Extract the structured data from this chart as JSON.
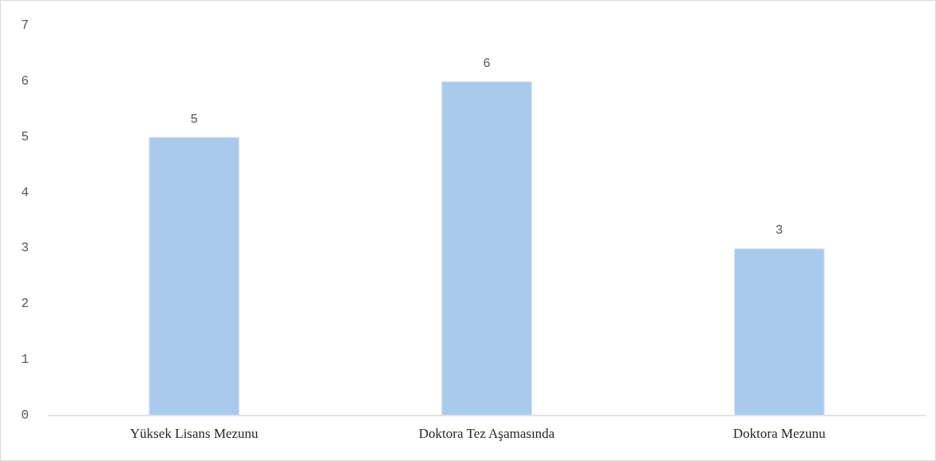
{
  "chart_data": {
    "type": "bar",
    "categories": [
      "Yüksek Lisans Mezunu",
      "Doktora Tez Aşamasında",
      "Doktora Mezunu"
    ],
    "values": [
      5,
      6,
      3
    ],
    "color": "#a9caeb",
    "ylim": [
      0,
      7
    ],
    "yticks": [
      0,
      1,
      2,
      3,
      4,
      5,
      6,
      7
    ],
    "grid": false,
    "data_labels": true
  }
}
